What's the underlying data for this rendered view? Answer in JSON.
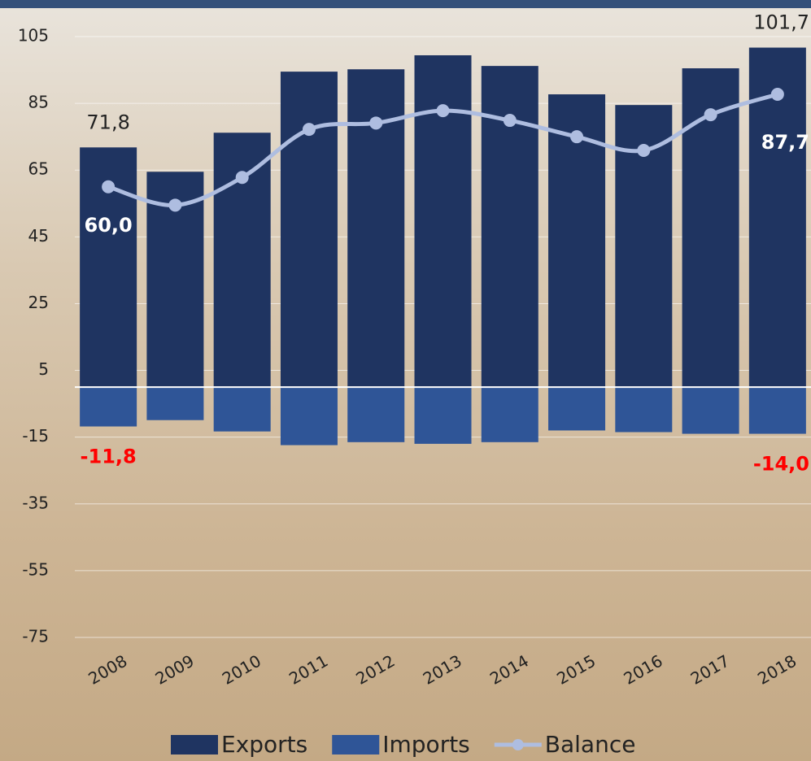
{
  "chart_data": {
    "type": "bar-line",
    "categories": [
      "2008",
      "2009",
      "2010",
      "2011",
      "2012",
      "2013",
      "2014",
      "2015",
      "2016",
      "2017",
      "2018"
    ],
    "series": [
      {
        "name": "Exports",
        "type": "bar",
        "color": "#1f3461",
        "values": [
          71.8,
          64.5,
          76.2,
          94.5,
          95.2,
          99.4,
          96.2,
          87.7,
          84.5,
          95.5,
          101.7
        ],
        "value_labels": [
          "71,8",
          null,
          null,
          null,
          null,
          null,
          null,
          null,
          null,
          null,
          "101,7"
        ]
      },
      {
        "name": "Imports",
        "type": "bar",
        "color": "#2f5597",
        "values": [
          -11.8,
          -9.9,
          -13.3,
          -17.4,
          -16.5,
          -17.0,
          -16.5,
          -13.0,
          -13.5,
          -14.0,
          -14.0
        ],
        "value_labels": [
          "-11,8",
          null,
          null,
          null,
          null,
          null,
          null,
          null,
          null,
          null,
          "-14,0"
        ]
      },
      {
        "name": "Balance",
        "type": "line",
        "color": "#aebde0",
        "values": [
          60.0,
          54.5,
          62.8,
          77.2,
          79.1,
          82.8,
          79.9,
          75.0,
          70.9,
          81.6,
          87.7
        ],
        "value_labels": [
          "60,0",
          null,
          null,
          null,
          null,
          null,
          null,
          null,
          null,
          null,
          "87,7"
        ]
      }
    ],
    "ylim": [
      -75,
      105
    ],
    "yticks": [
      105,
      85,
      65,
      45,
      25,
      5,
      -15,
      -35,
      -55,
      -75
    ],
    "grid": true
  }
}
